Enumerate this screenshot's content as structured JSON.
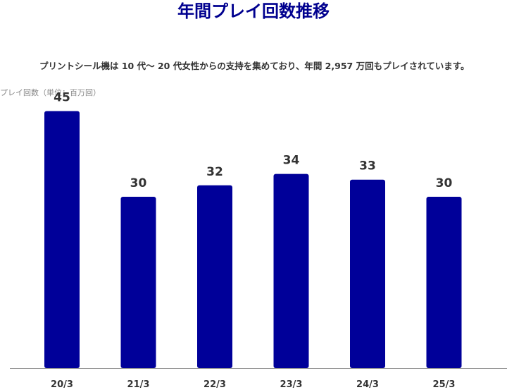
{
  "title": "年間プレイ回数推移",
  "subtitle": "プリントシール機は 10 代〜 20 代女性からの支持を集めており、年間 2,957 万回もプレイされています。",
  "unit_label": "プレイ回数（単位：百万回）",
  "colors": {
    "bar": "#000099",
    "title": "#00008f",
    "axis": "#999999",
    "text": "#333333"
  },
  "chart_data": {
    "type": "bar",
    "title": "年間プレイ回数推移",
    "subtitle": "プリントシール機は 10 代〜 20 代女性からの支持を集めており、年間 2,957 万回もプレイされています。",
    "xlabel": "",
    "ylabel": "プレイ回数（単位：百万回）",
    "categories": [
      "20/3",
      "21/3",
      "22/3",
      "23/3",
      "24/3",
      "25/3"
    ],
    "values": [
      45,
      30,
      32,
      34,
      33,
      30
    ],
    "ylim": [
      0,
      50
    ],
    "grid": false,
    "legend": "none",
    "data_labels": true
  }
}
